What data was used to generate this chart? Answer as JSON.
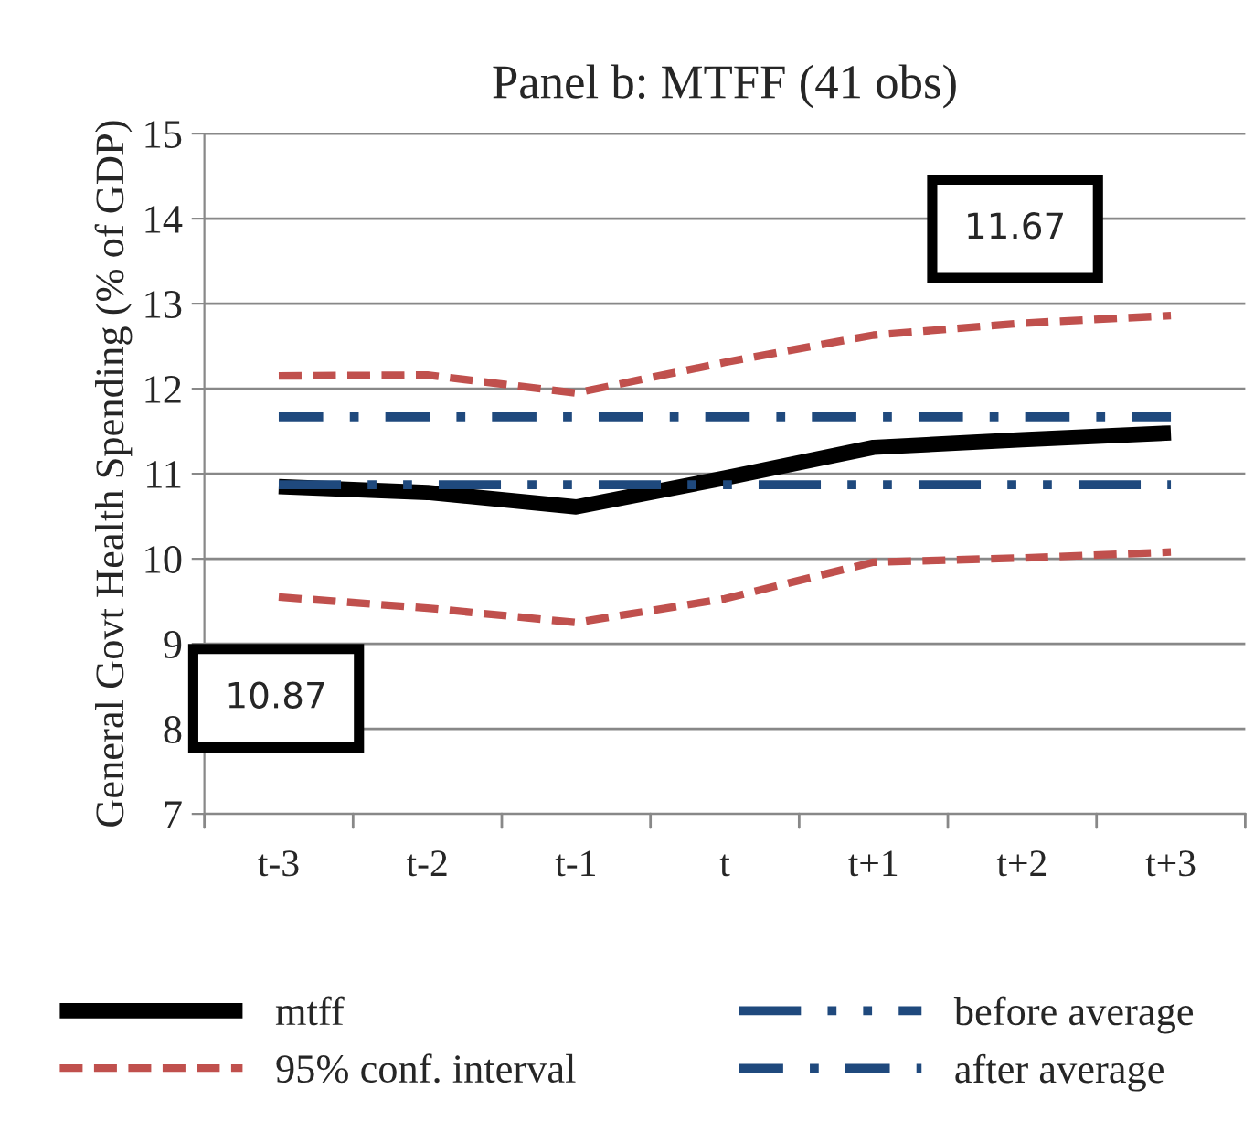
{
  "chart_data": {
    "type": "line",
    "title": "Panel b: MTFF (41 obs)",
    "ylabel": "General Govt Health Spending (% of GDP)",
    "categories": [
      "t-3",
      "t-2",
      "t-1",
      "t",
      "t+1",
      "t+2",
      "t+3"
    ],
    "series": [
      {
        "name": "mtff",
        "color": "#000000",
        "line_style": "solid",
        "values": [
          10.85,
          10.78,
          10.61,
          10.95,
          11.31,
          11.4,
          11.48
        ]
      },
      {
        "name": "95% conf. interval",
        "color": "#c0504d",
        "line_style": "dashed",
        "values": [
          12.15,
          12.16,
          11.95,
          12.31,
          12.63,
          12.77,
          12.86
        ]
      },
      {
        "color": "#c0504d",
        "line_style": "dashed",
        "values": [
          9.55,
          9.42,
          9.25,
          9.53,
          9.96,
          10.01,
          10.08
        ]
      },
      {
        "name": "before average",
        "color": "#1f497d",
        "line_style": "dashdotdot",
        "values": [
          10.87,
          10.87,
          10.87,
          10.87,
          10.87,
          10.87,
          10.87
        ]
      },
      {
        "name": "after average",
        "color": "#1f497d",
        "line_style": "dashdot",
        "values": [
          11.67,
          11.67,
          11.67,
          11.67,
          11.67,
          11.67,
          11.67
        ]
      }
    ],
    "annotations": [
      "10.87",
      "11.67"
    ],
    "ylim": [
      7,
      15
    ],
    "yticks": [
      7,
      8,
      9,
      10,
      11,
      12,
      13,
      14,
      15
    ],
    "grid": "y",
    "legend": "bottom",
    "marker": "none"
  }
}
